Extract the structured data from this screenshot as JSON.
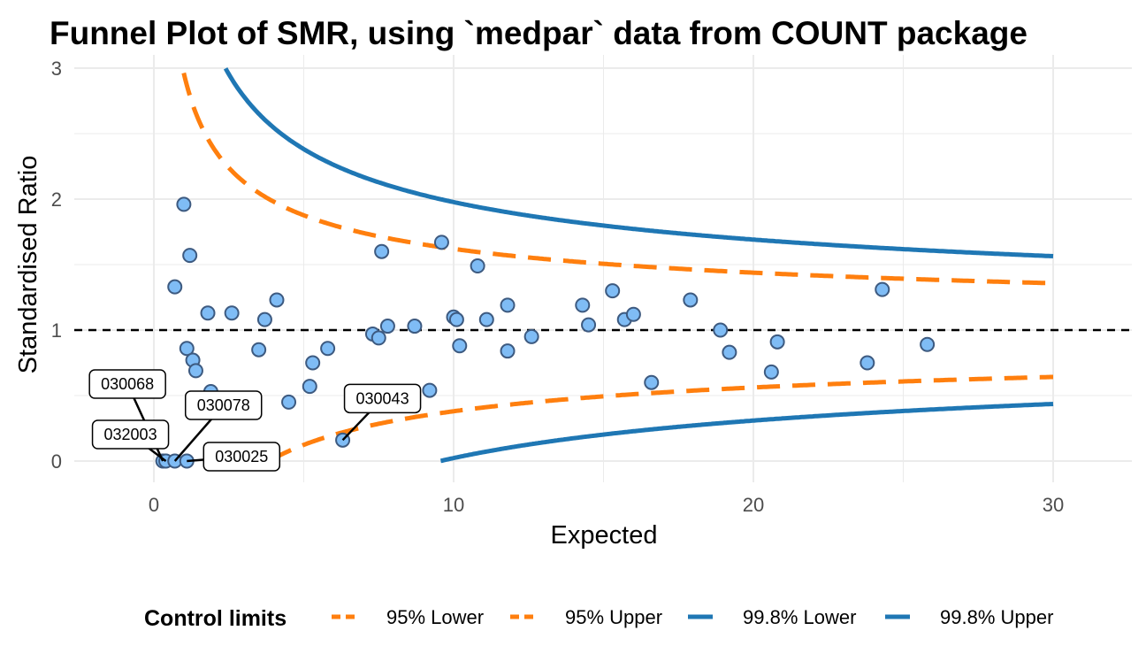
{
  "chart_data": {
    "type": "scatter",
    "title": "Funnel Plot of SMR, using `medpar` data from COUNT package",
    "xlabel": "Expected",
    "ylabel": "Standardised Ratio",
    "xlim": [
      -2.6,
      32.6
    ],
    "ylim": [
      -0.2,
      3.0
    ],
    "x_ticks": [
      0,
      10,
      20,
      30
    ],
    "y_ticks": [
      0,
      1,
      2,
      3
    ],
    "grid": true,
    "target_line": 1,
    "points": [
      {
        "x": 0.3,
        "y": 0.0
      },
      {
        "x": 0.4,
        "y": 0.0
      },
      {
        "x": 0.7,
        "y": 0.0
      },
      {
        "x": 1.1,
        "y": 0.0
      },
      {
        "x": 0.7,
        "y": 1.33
      },
      {
        "x": 1.0,
        "y": 1.96
      },
      {
        "x": 1.2,
        "y": 1.57
      },
      {
        "x": 1.1,
        "y": 0.86
      },
      {
        "x": 1.3,
        "y": 0.77
      },
      {
        "x": 1.4,
        "y": 0.69
      },
      {
        "x": 1.8,
        "y": 1.13
      },
      {
        "x": 1.9,
        "y": 0.53
      },
      {
        "x": 2.6,
        "y": 1.13
      },
      {
        "x": 3.5,
        "y": 0.85
      },
      {
        "x": 3.7,
        "y": 1.08
      },
      {
        "x": 4.1,
        "y": 1.23
      },
      {
        "x": 4.5,
        "y": 0.45
      },
      {
        "x": 5.2,
        "y": 0.57
      },
      {
        "x": 5.3,
        "y": 0.75
      },
      {
        "x": 5.8,
        "y": 0.86
      },
      {
        "x": 6.3,
        "y": 0.16
      },
      {
        "x": 7.3,
        "y": 0.97
      },
      {
        "x": 7.5,
        "y": 0.94
      },
      {
        "x": 7.6,
        "y": 1.6
      },
      {
        "x": 7.8,
        "y": 1.03
      },
      {
        "x": 8.7,
        "y": 1.03
      },
      {
        "x": 9.2,
        "y": 0.54
      },
      {
        "x": 9.6,
        "y": 1.67
      },
      {
        "x": 10.0,
        "y": 1.1
      },
      {
        "x": 10.1,
        "y": 1.08
      },
      {
        "x": 10.2,
        "y": 0.88
      },
      {
        "x": 10.8,
        "y": 1.49
      },
      {
        "x": 11.1,
        "y": 1.08
      },
      {
        "x": 11.8,
        "y": 1.19
      },
      {
        "x": 11.8,
        "y": 0.84
      },
      {
        "x": 12.6,
        "y": 0.95
      },
      {
        "x": 14.3,
        "y": 1.19
      },
      {
        "x": 14.5,
        "y": 1.04
      },
      {
        "x": 15.3,
        "y": 1.3
      },
      {
        "x": 15.7,
        "y": 1.08
      },
      {
        "x": 16.0,
        "y": 1.12
      },
      {
        "x": 16.6,
        "y": 0.6
      },
      {
        "x": 17.9,
        "y": 1.23
      },
      {
        "x": 18.9,
        "y": 1.0
      },
      {
        "x": 19.2,
        "y": 0.83
      },
      {
        "x": 20.6,
        "y": 0.68
      },
      {
        "x": 20.8,
        "y": 0.91
      },
      {
        "x": 23.8,
        "y": 0.75
      },
      {
        "x": 24.3,
        "y": 1.31
      },
      {
        "x": 25.8,
        "y": 0.89
      }
    ],
    "point_labels": [
      {
        "text": "030068",
        "x": 0.3,
        "y": 0.0
      },
      {
        "text": "032003",
        "x": 0.4,
        "y": 0.0
      },
      {
        "text": "030078",
        "x": 0.7,
        "y": 0.0
      },
      {
        "text": "030025",
        "x": 1.1,
        "y": 0.0
      },
      {
        "text": "030043",
        "x": 6.3,
        "y": 0.16
      }
    ],
    "series": [
      {
        "name": "95% Lower",
        "color": "#ff7f0e",
        "dash": true,
        "z": 1.96,
        "side": "lower"
      },
      {
        "name": "95% Upper",
        "color": "#ff7f0e",
        "dash": true,
        "z": 1.96,
        "side": "upper"
      },
      {
        "name": "99.8% Lower",
        "color": "#1f77b4",
        "dash": false,
        "z": 3.09,
        "side": "lower"
      },
      {
        "name": "99.8% Upper",
        "color": "#1f77b4",
        "dash": false,
        "z": 3.09,
        "side": "upper"
      }
    ],
    "limit_x_range": [
      0.1,
      30
    ],
    "legend": {
      "title": "Control limits",
      "position": "bottom"
    },
    "colors": {
      "point_fill": "#7fbcf5",
      "point_stroke": "#3d5a80",
      "target": "#000000",
      "grid": "#ebebeb"
    }
  }
}
